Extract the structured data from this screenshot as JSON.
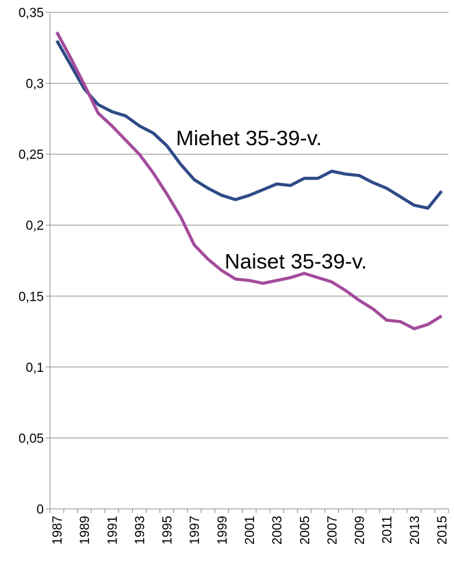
{
  "chart_data": {
    "type": "line",
    "categories": [
      "1987",
      null,
      "1989",
      null,
      "1991",
      null,
      "1993",
      null,
      "1995",
      null,
      "1997",
      null,
      "1999",
      null,
      "2001",
      null,
      "2003",
      null,
      "2005",
      null,
      "2007",
      null,
      "2009",
      null,
      "2011",
      null,
      "2013",
      null,
      "2015"
    ],
    "series": [
      {
        "name": "Miehet 35-39-v.",
        "color": "#2e4a87",
        "values": [
          0.33,
          0.313,
          0.296,
          0.285,
          0.28,
          0.277,
          0.27,
          0.265,
          0.256,
          0.243,
          0.232,
          0.226,
          0.221,
          0.218,
          0.221,
          0.225,
          0.229,
          0.228,
          0.233,
          0.233,
          0.238,
          0.236,
          0.235,
          0.23,
          0.226,
          0.22,
          0.214,
          0.212,
          0.224
        ]
      },
      {
        "name": "Naiset 35-39-v.",
        "color": "#a34b9c",
        "values": [
          0.336,
          0.318,
          0.299,
          0.279,
          0.27,
          0.26,
          0.25,
          0.237,
          0.222,
          0.206,
          0.186,
          0.176,
          0.168,
          0.162,
          0.161,
          0.159,
          0.161,
          0.163,
          0.166,
          0.163,
          0.16,
          0.154,
          0.147,
          0.141,
          0.133,
          0.132,
          0.127,
          0.13,
          0.136
        ]
      }
    ],
    "ylim": [
      0,
      0.35
    ],
    "yticks": [
      0,
      {
        "value": 0.05,
        "label": "0,05"
      },
      {
        "value": 0.1,
        "label": "0,1"
      },
      {
        "value": 0.15,
        "label": "0,15"
      },
      {
        "value": 0.2,
        "label": "0,2"
      },
      {
        "value": 0.25,
        "label": "0,25"
      },
      {
        "value": 0.3,
        "label": "0,3"
      },
      {
        "value": 0.35,
        "label": "0,35"
      }
    ],
    "grid": true
  }
}
